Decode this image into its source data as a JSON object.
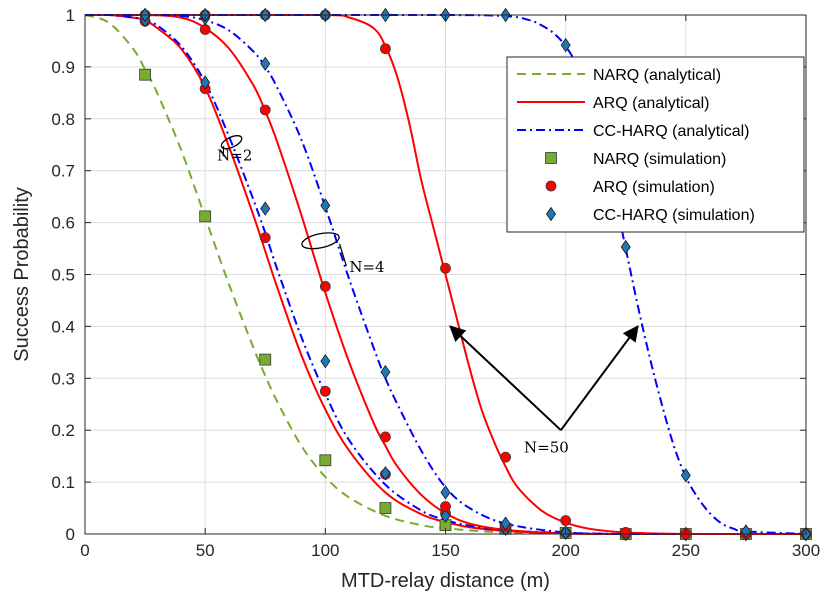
{
  "chart_data": {
    "type": "line",
    "title": "",
    "xlabel": "MTD-relay distance (m)",
    "ylabel": "Success Probability",
    "xlim": [
      0,
      300
    ],
    "ylim": [
      0,
      1
    ],
    "xticks": [
      0,
      50,
      100,
      150,
      200,
      250,
      300
    ],
    "yticks": [
      0,
      0.1,
      0.2,
      0.3,
      0.4,
      0.5,
      0.6,
      0.7,
      0.8,
      0.9,
      1
    ],
    "grid": true,
    "legend_position": "top-right",
    "colors": {
      "narq": "#77AC30",
      "arq": "#FF0000",
      "ccharq": "#0000FF",
      "simnarq": "#77AC30",
      "simarq": "#FF0000",
      "simcc": "#1f77b4"
    },
    "legend": [
      {
        "label": "NARQ (analytical)",
        "kind": "line",
        "dash": "dashed",
        "color": "#77AC30"
      },
      {
        "label": "ARQ (analytical)",
        "kind": "line",
        "dash": "solid",
        "color": "#FF0000"
      },
      {
        "label": "CC-HARQ (analytical)",
        "kind": "line",
        "dash": "dashdot",
        "color": "#0000FF"
      },
      {
        "label": "NARQ (simulation)",
        "kind": "marker",
        "marker": "square",
        "color": "#77AC30"
      },
      {
        "label": "ARQ (simulation)",
        "kind": "marker",
        "marker": "circle",
        "color": "#FF0000"
      },
      {
        "label": "CC-HARQ (simulation)",
        "kind": "marker",
        "marker": "diamond",
        "color": "#1f77b4"
      }
    ],
    "series": [
      {
        "group": "N=2",
        "kind": "analytical",
        "scheme": "NARQ",
        "x": [
          0,
          10,
          20,
          25,
          30,
          40,
          50,
          60,
          70,
          75,
          80,
          90,
          100,
          110,
          125,
          140,
          150,
          160,
          175,
          200,
          225,
          250,
          275,
          300
        ],
        "y": [
          1,
          0.985,
          0.935,
          0.895,
          0.85,
          0.74,
          0.61,
          0.48,
          0.36,
          0.305,
          0.255,
          0.17,
          0.11,
          0.07,
          0.035,
          0.017,
          0.011,
          0.007,
          0.003,
          0.001,
          0,
          0,
          0,
          0
        ]
      },
      {
        "group": "N=2",
        "kind": "analytical",
        "scheme": "ARQ",
        "x": [
          0,
          10,
          20,
          25,
          30,
          40,
          50,
          60,
          70,
          75,
          80,
          90,
          100,
          110,
          125,
          140,
          150,
          160,
          175,
          200,
          225,
          250,
          275,
          300
        ],
        "y": [
          1,
          1,
          0.995,
          0.99,
          0.975,
          0.935,
          0.86,
          0.745,
          0.615,
          0.545,
          0.475,
          0.345,
          0.24,
          0.16,
          0.08,
          0.038,
          0.023,
          0.013,
          0.006,
          0.001,
          0,
          0,
          0,
          0
        ]
      },
      {
        "group": "N=2",
        "kind": "analytical",
        "scheme": "CC-HARQ",
        "x": [
          0,
          10,
          20,
          25,
          30,
          40,
          50,
          60,
          70,
          75,
          80,
          90,
          100,
          110,
          125,
          140,
          150,
          160,
          175,
          200,
          225,
          250,
          275,
          300
        ],
        "y": [
          1,
          1,
          0.995,
          0.99,
          0.98,
          0.94,
          0.87,
          0.765,
          0.645,
          0.58,
          0.51,
          0.38,
          0.27,
          0.18,
          0.095,
          0.045,
          0.027,
          0.016,
          0.007,
          0.002,
          0,
          0,
          0,
          0
        ]
      },
      {
        "group": "N=4",
        "kind": "analytical",
        "scheme": "ARQ",
        "x": [
          0,
          25,
          40,
          50,
          60,
          70,
          75,
          80,
          90,
          100,
          110,
          120,
          125,
          130,
          140,
          150,
          160,
          175,
          200,
          225,
          250,
          275,
          300
        ],
        "y": [
          1,
          1,
          0.995,
          0.975,
          0.935,
          0.865,
          0.815,
          0.755,
          0.615,
          0.465,
          0.33,
          0.215,
          0.17,
          0.13,
          0.075,
          0.04,
          0.02,
          0.008,
          0.001,
          0,
          0,
          0,
          0
        ]
      },
      {
        "group": "N=4",
        "kind": "analytical",
        "scheme": "CC-HARQ",
        "x": [
          0,
          25,
          40,
          50,
          60,
          70,
          75,
          80,
          90,
          100,
          110,
          120,
          125,
          130,
          140,
          150,
          160,
          175,
          200,
          225,
          250,
          275,
          300
        ],
        "y": [
          1,
          1,
          0.998,
          0.99,
          0.97,
          0.93,
          0.9,
          0.86,
          0.76,
          0.63,
          0.49,
          0.36,
          0.3,
          0.25,
          0.16,
          0.09,
          0.05,
          0.02,
          0.003,
          0,
          0,
          0,
          0
        ]
      },
      {
        "group": "N=50",
        "kind": "analytical",
        "scheme": "ARQ",
        "x": [
          0,
          50,
          100,
          110,
          120,
          125,
          130,
          135,
          140,
          145,
          150,
          155,
          160,
          165,
          170,
          175,
          180,
          190,
          200,
          210,
          225,
          250,
          275,
          300
        ],
        "y": [
          1,
          1,
          1,
          0.995,
          0.975,
          0.94,
          0.88,
          0.79,
          0.68,
          0.59,
          0.5,
          0.41,
          0.32,
          0.24,
          0.18,
          0.13,
          0.09,
          0.045,
          0.022,
          0.01,
          0.003,
          0,
          0,
          0
        ]
      },
      {
        "group": "N=50",
        "kind": "analytical",
        "scheme": "CC-HARQ",
        "x": [
          0,
          100,
          150,
          175,
          185,
          190,
          195,
          200,
          205,
          210,
          215,
          220,
          225,
          230,
          235,
          240,
          245,
          250,
          255,
          260,
          265,
          270,
          275,
          300
        ],
        "y": [
          1,
          1,
          1,
          0.998,
          0.99,
          0.98,
          0.965,
          0.94,
          0.9,
          0.84,
          0.76,
          0.66,
          0.55,
          0.44,
          0.34,
          0.25,
          0.17,
          0.11,
          0.07,
          0.04,
          0.02,
          0.01,
          0.005,
          0
        ]
      },
      {
        "group": "N=2",
        "kind": "simulation",
        "scheme": "NARQ",
        "x": [
          25,
          50,
          75,
          100,
          125,
          150,
          175,
          200,
          225,
          250,
          275,
          300
        ],
        "y": [
          0.885,
          0.612,
          0.336,
          0.142,
          0.05,
          0.017,
          0.01,
          0.002,
          0,
          0,
          0,
          0
        ]
      },
      {
        "group": "N=2",
        "kind": "simulation",
        "scheme": "ARQ",
        "x": [
          25,
          50,
          75,
          100,
          125,
          150,
          175,
          200,
          225,
          250,
          275,
          300
        ],
        "y": [
          0.988,
          0.858,
          0.571,
          0.275,
          0.115,
          0.04,
          0.01,
          0.002,
          0,
          0,
          0,
          0
        ]
      },
      {
        "group": "N=2",
        "kind": "simulation",
        "scheme": "CC-HARQ",
        "x": [
          25,
          50,
          75,
          100,
          125,
          150,
          175,
          200,
          225,
          250,
          275,
          300
        ],
        "y": [
          0.99,
          0.87,
          0.627,
          0.333,
          0.117,
          0.035,
          0.01,
          0.002,
          0,
          0,
          0,
          0
        ]
      },
      {
        "group": "N=4",
        "kind": "simulation",
        "scheme": "ARQ",
        "x": [
          25,
          50,
          75,
          100,
          125,
          150,
          175,
          200,
          225,
          250,
          275,
          300
        ],
        "y": [
          1,
          0.972,
          0.817,
          0.477,
          0.187,
          0.053,
          0.015,
          0.002,
          0,
          0,
          0,
          0
        ]
      },
      {
        "group": "N=4",
        "kind": "simulation",
        "scheme": "CC-HARQ",
        "x": [
          25,
          50,
          75,
          100,
          125,
          150,
          175,
          200,
          225,
          250,
          275,
          300
        ],
        "y": [
          1,
          0.994,
          0.906,
          0.633,
          0.312,
          0.08,
          0.02,
          0.003,
          0,
          0,
          0,
          0
        ]
      },
      {
        "group": "N=50",
        "kind": "simulation",
        "scheme": "ARQ",
        "x": [
          25,
          50,
          75,
          100,
          125,
          150,
          175,
          200,
          225,
          250,
          275,
          300
        ],
        "y": [
          1,
          1,
          1,
          1,
          0.935,
          0.512,
          0.148,
          0.026,
          0.003,
          0,
          0,
          0
        ]
      },
      {
        "group": "N=50",
        "kind": "simulation",
        "scheme": "CC-HARQ",
        "x": [
          25,
          50,
          75,
          100,
          125,
          150,
          175,
          200,
          225,
          250,
          275,
          300
        ],
        "y": [
          1,
          1,
          1,
          1,
          1,
          1,
          1,
          0.942,
          0.553,
          0.113,
          0.005,
          0
        ]
      }
    ],
    "annotations": [
      {
        "text": "N=2",
        "x": 55,
        "y": 0.72,
        "ellipse": {
          "x": 61,
          "y": 0.755
        }
      },
      {
        "text": "N=4",
        "x": 110,
        "y": 0.505,
        "ellipse": {
          "x": 98,
          "y": 0.565
        },
        "arrow_to": {
          "x": 98,
          "y": 0.565
        }
      },
      {
        "text": "N=50",
        "x": 192,
        "y": 0.18,
        "arrow_from": {
          "x": 198,
          "y": 0.2
        },
        "arrow_targets": [
          {
            "x": 152,
            "y": 0.4
          },
          {
            "x": 230,
            "y": 0.4
          }
        ]
      }
    ]
  }
}
